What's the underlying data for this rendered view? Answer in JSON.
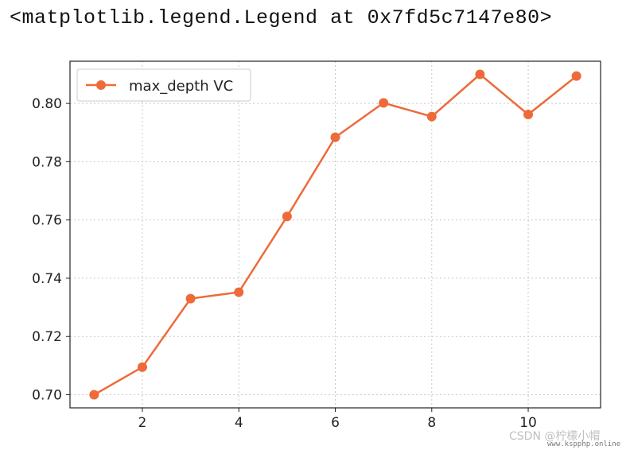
{
  "repr_text": "<matplotlib.legend.Legend at 0x7fd5c7147e80>",
  "watermark": "CSDN @柠檬小帽",
  "site": "www.kspphp.online",
  "colors": {
    "series": "#ee6a3a",
    "grid": "#c8c8c8",
    "axes": "#222222"
  },
  "chart_data": {
    "type": "line",
    "x": [
      1,
      2,
      3,
      4,
      5,
      6,
      7,
      8,
      9,
      10,
      11
    ],
    "series": [
      {
        "name": "max_depth VC",
        "values": [
          0.7,
          0.7095,
          0.733,
          0.7352,
          0.7612,
          0.7884,
          0.8002,
          0.7955,
          0.81,
          0.7962,
          0.8094
        ]
      }
    ],
    "xticks": [
      2,
      4,
      6,
      8,
      10
    ],
    "yticks": [
      0.7,
      0.72,
      0.74,
      0.76,
      0.78,
      0.8
    ],
    "xtick_labels": [
      "2",
      "4",
      "6",
      "8",
      "10"
    ],
    "ytick_labels": [
      "0.70",
      "0.72",
      "0.74",
      "0.76",
      "0.78",
      "0.80"
    ],
    "xlim": [
      0.5,
      11.5
    ],
    "ylim": [
      0.6955,
      0.8145
    ],
    "grid": true,
    "grid_style": "dotted",
    "legend_position": "top-left",
    "marker": "circle",
    "title": "",
    "xlabel": "",
    "ylabel": ""
  }
}
